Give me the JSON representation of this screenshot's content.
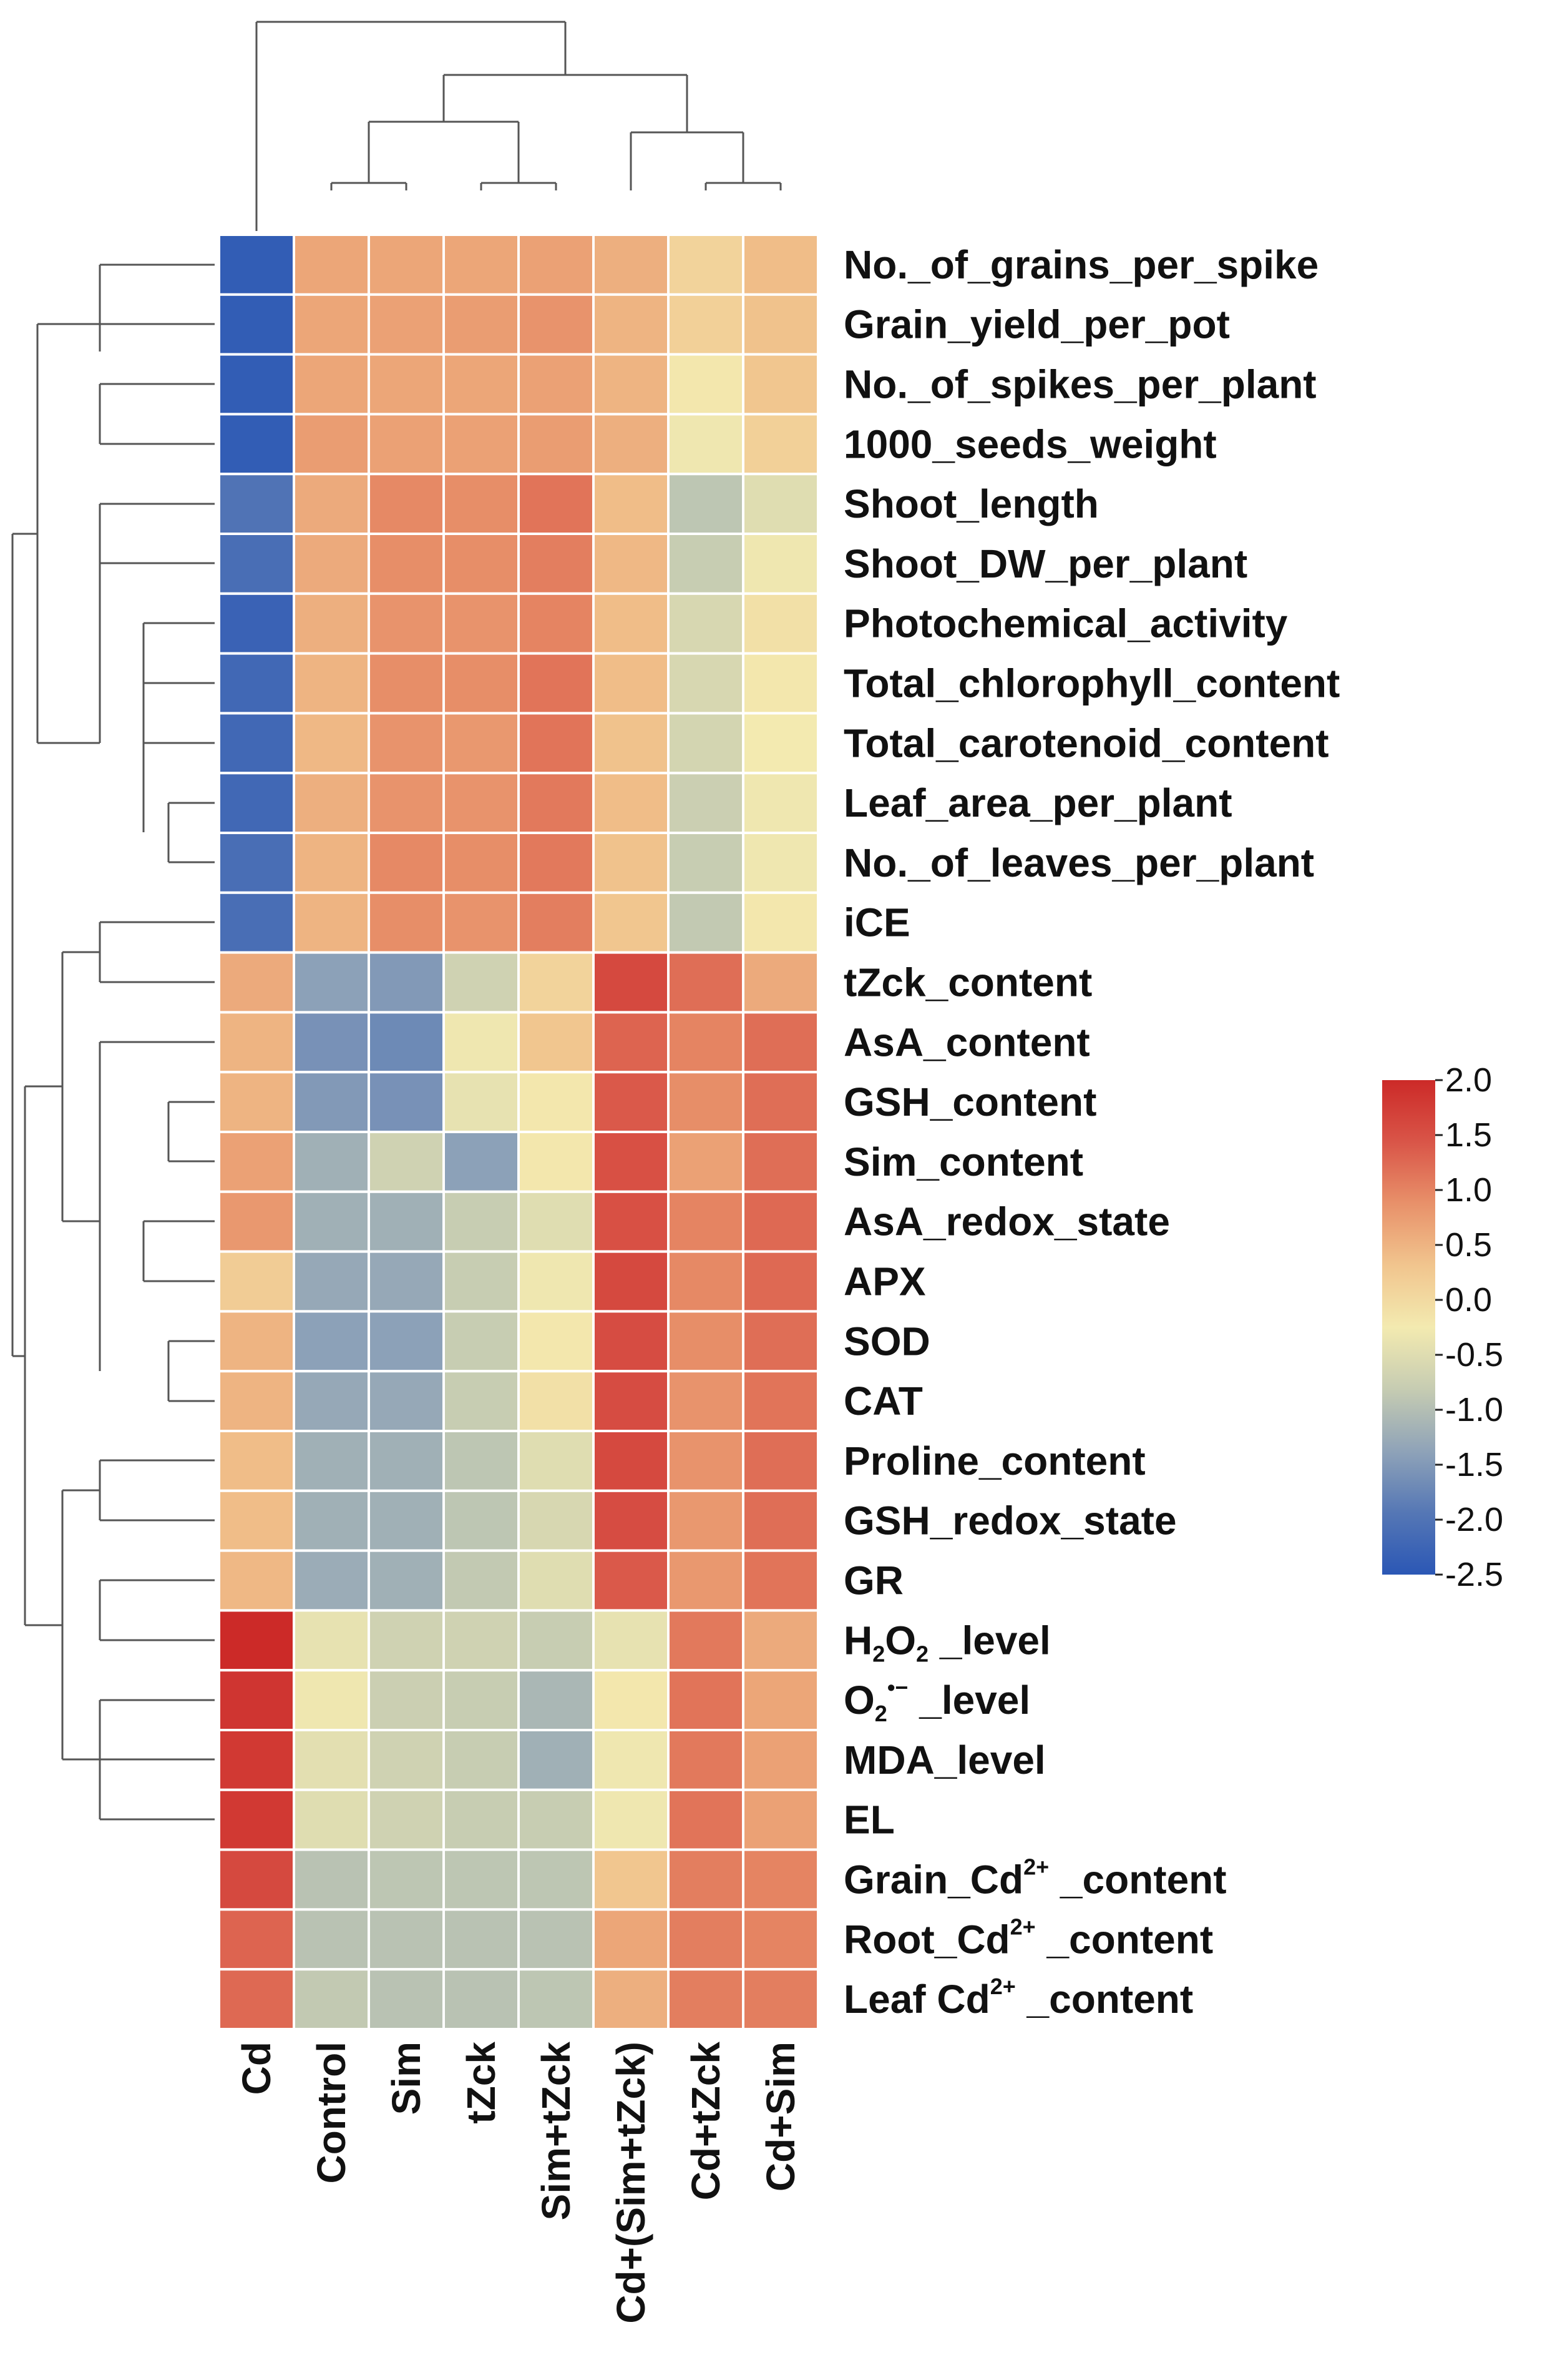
{
  "chart_data": {
    "type": "heatmap",
    "title": "",
    "xlabel": "",
    "ylabel": "",
    "columns": [
      "Cd",
      "Control",
      "Sim",
      "tZck",
      "Sim+tZck",
      "Cd+(Sim+tZck)",
      "Cd+tZck",
      "Cd+Sim"
    ],
    "rows": [
      {
        "label": "No._of_grains_per_spike",
        "values": [
          -2.4,
          0.65,
          0.65,
          0.65,
          0.7,
          0.55,
          0.1,
          0.4
        ]
      },
      {
        "label": "Grain_yield_per_pot",
        "values": [
          -2.4,
          0.65,
          0.7,
          0.75,
          0.85,
          0.5,
          0.15,
          0.35
        ]
      },
      {
        "label": "No._of_spikes_per_plant",
        "values": [
          -2.4,
          0.65,
          0.65,
          0.65,
          0.7,
          0.5,
          -0.2,
          0.3
        ]
      },
      {
        "label": "1000_seeds_weight",
        "values": [
          -2.4,
          0.75,
          0.7,
          0.7,
          0.75,
          0.55,
          -0.3,
          0.15
        ]
      },
      {
        "label": "Shoot_length",
        "values": [
          -2.0,
          0.6,
          0.95,
          0.9,
          1.15,
          0.4,
          -0.9,
          -0.5
        ]
      },
      {
        "label": "Shoot_DW_per_plant",
        "values": [
          -2.1,
          0.6,
          0.9,
          0.9,
          1.05,
          0.45,
          -0.8,
          -0.3
        ]
      },
      {
        "label": "Photochemical_activity",
        "values": [
          -2.3,
          0.55,
          0.85,
          0.85,
          1.0,
          0.4,
          -0.6,
          -0.1
        ]
      },
      {
        "label": "Total_chlorophyll_content",
        "values": [
          -2.2,
          0.5,
          0.9,
          0.9,
          1.15,
          0.4,
          -0.6,
          -0.2
        ]
      },
      {
        "label": "Total_carotenoid_content",
        "values": [
          -2.2,
          0.45,
          0.85,
          0.8,
          1.15,
          0.35,
          -0.65,
          -0.25
        ]
      },
      {
        "label": "Leaf_area_per_plant",
        "values": [
          -2.2,
          0.55,
          0.85,
          0.85,
          1.1,
          0.4,
          -0.75,
          -0.3
        ]
      },
      {
        "label": "No._of_leaves_per_plant",
        "values": [
          -2.1,
          0.5,
          0.95,
          0.9,
          1.1,
          0.35,
          -0.8,
          -0.3
        ]
      },
      {
        "label": "iCE",
        "values": [
          -2.1,
          0.5,
          0.9,
          0.85,
          1.05,
          0.3,
          -0.85,
          -0.2
        ]
      },
      {
        "label": "tZck_content",
        "values": [
          0.6,
          -1.4,
          -1.5,
          -0.7,
          0.1,
          1.6,
          1.2,
          0.6
        ]
      },
      {
        "label": "AsA_content",
        "values": [
          0.5,
          -1.6,
          -1.7,
          -0.3,
          0.3,
          1.3,
          1.0,
          1.2
        ]
      },
      {
        "label": "GSH_content",
        "values": [
          0.5,
          -1.5,
          -1.6,
          -0.4,
          -0.2,
          1.4,
          0.9,
          1.2
        ]
      },
      {
        "label": "Sim_content",
        "values": [
          0.7,
          -1.2,
          -0.7,
          -1.4,
          -0.2,
          1.5,
          0.7,
          1.2
        ]
      },
      {
        "label": "AsA_redox_state",
        "values": [
          0.8,
          -1.2,
          -1.2,
          -0.8,
          -0.5,
          1.5,
          1.0,
          1.25
        ]
      },
      {
        "label": "APX",
        "values": [
          0.2,
          -1.3,
          -1.3,
          -0.8,
          -0.3,
          1.6,
          0.95,
          1.25
        ]
      },
      {
        "label": "SOD",
        "values": [
          0.5,
          -1.4,
          -1.4,
          -0.8,
          -0.2,
          1.55,
          0.9,
          1.2
        ]
      },
      {
        "label": "CAT",
        "values": [
          0.5,
          -1.3,
          -1.3,
          -0.8,
          -0.1,
          1.55,
          0.85,
          1.15
        ]
      },
      {
        "label": "Proline_content",
        "values": [
          0.4,
          -1.2,
          -1.2,
          -0.9,
          -0.5,
          1.6,
          0.85,
          1.2
        ]
      },
      {
        "label": "GSH_redox_state",
        "values": [
          0.4,
          -1.2,
          -1.2,
          -0.9,
          -0.6,
          1.55,
          0.8,
          1.2
        ]
      },
      {
        "label": "GR",
        "values": [
          0.45,
          -1.25,
          -1.2,
          -0.85,
          -0.5,
          1.4,
          0.8,
          1.15
        ]
      },
      {
        "label": "H2O2_level",
        "values": [
          2.0,
          -0.4,
          -0.7,
          -0.7,
          -0.8,
          -0.4,
          1.1,
          0.6
        ]
      },
      {
        "label": "O2•− _level",
        "values": [
          1.85,
          -0.3,
          -0.75,
          -0.8,
          -1.1,
          -0.2,
          1.15,
          0.65
        ]
      },
      {
        "label": "MDA_level",
        "values": [
          1.8,
          -0.45,
          -0.7,
          -0.8,
          -1.2,
          -0.3,
          1.1,
          0.7
        ]
      },
      {
        "label": "EL",
        "values": [
          1.8,
          -0.5,
          -0.7,
          -0.8,
          -0.8,
          -0.3,
          1.15,
          0.7
        ]
      },
      {
        "label": "Grain_Cd2+ _content",
        "values": [
          1.6,
          -0.95,
          -0.9,
          -0.9,
          -0.9,
          0.3,
          1.05,
          1.0
        ]
      },
      {
        "label": "Root_Cd2+ _content",
        "values": [
          1.3,
          -0.95,
          -0.95,
          -0.95,
          -0.95,
          0.65,
          1.05,
          1.0
        ]
      },
      {
        "label": "Leaf Cd2+ _content",
        "values": [
          1.25,
          -0.85,
          -0.95,
          -0.95,
          -0.9,
          0.55,
          1.05,
          1.05
        ]
      }
    ],
    "row_labels_display": [
      {
        "pre": "No._of_grains_per_spike"
      },
      {
        "pre": "Grain_yield_per_pot"
      },
      {
        "pre": "No._of_spikes_per_plant"
      },
      {
        "pre": "1000_seeds_weight"
      },
      {
        "pre": "Shoot_length"
      },
      {
        "pre": "Shoot_DW_per_plant"
      },
      {
        "pre": "Photochemical_activity"
      },
      {
        "pre": "Total_chlorophyll_content"
      },
      {
        "pre": "Total_carotenoid_content"
      },
      {
        "pre": "Leaf_area_per_plant"
      },
      {
        "pre": "No._of_leaves_per_plant"
      },
      {
        "pre": "iCE"
      },
      {
        "pre": "tZck_content"
      },
      {
        "pre": "AsA_content"
      },
      {
        "pre": "GSH_content"
      },
      {
        "pre": "Sim_content"
      },
      {
        "pre": "AsA_redox_state"
      },
      {
        "pre": "APX"
      },
      {
        "pre": "SOD"
      },
      {
        "pre": "CAT"
      },
      {
        "pre": "Proline_content"
      },
      {
        "pre": "GSH_redox_state"
      },
      {
        "pre": "GR"
      },
      {
        "pre": "H",
        "sub": "2",
        "mid": "O",
        "sub2": "2",
        "post": " _level"
      },
      {
        "pre": "O",
        "sub": "2",
        "sup": "•−",
        "post": " _level"
      },
      {
        "pre": "MDA_level"
      },
      {
        "pre": "EL"
      },
      {
        "pre": "Grain_Cd",
        "sup": "2+",
        "post": " _content"
      },
      {
        "pre": "Root_Cd",
        "sup": "2+",
        "post": " _content"
      },
      {
        "pre": "Leaf Cd",
        "sup": "2+",
        "post": " _content"
      }
    ],
    "colorbar": {
      "min": -2.5,
      "max": 2.0,
      "ticks": [
        "2.0",
        "1.5",
        "1.0",
        "0.5",
        "0.0",
        "-0.5",
        "-1.0",
        "-1.5",
        "-2.0",
        "-2.5"
      ],
      "colors": [
        "#2b57b5",
        "#5577b5",
        "#8fa3b8",
        "#c6ccb2",
        "#f3eab0",
        "#f1c58e",
        "#e8916a",
        "#d95548",
        "#cc2a28"
      ]
    },
    "legend_placement": "right",
    "grid": true
  }
}
